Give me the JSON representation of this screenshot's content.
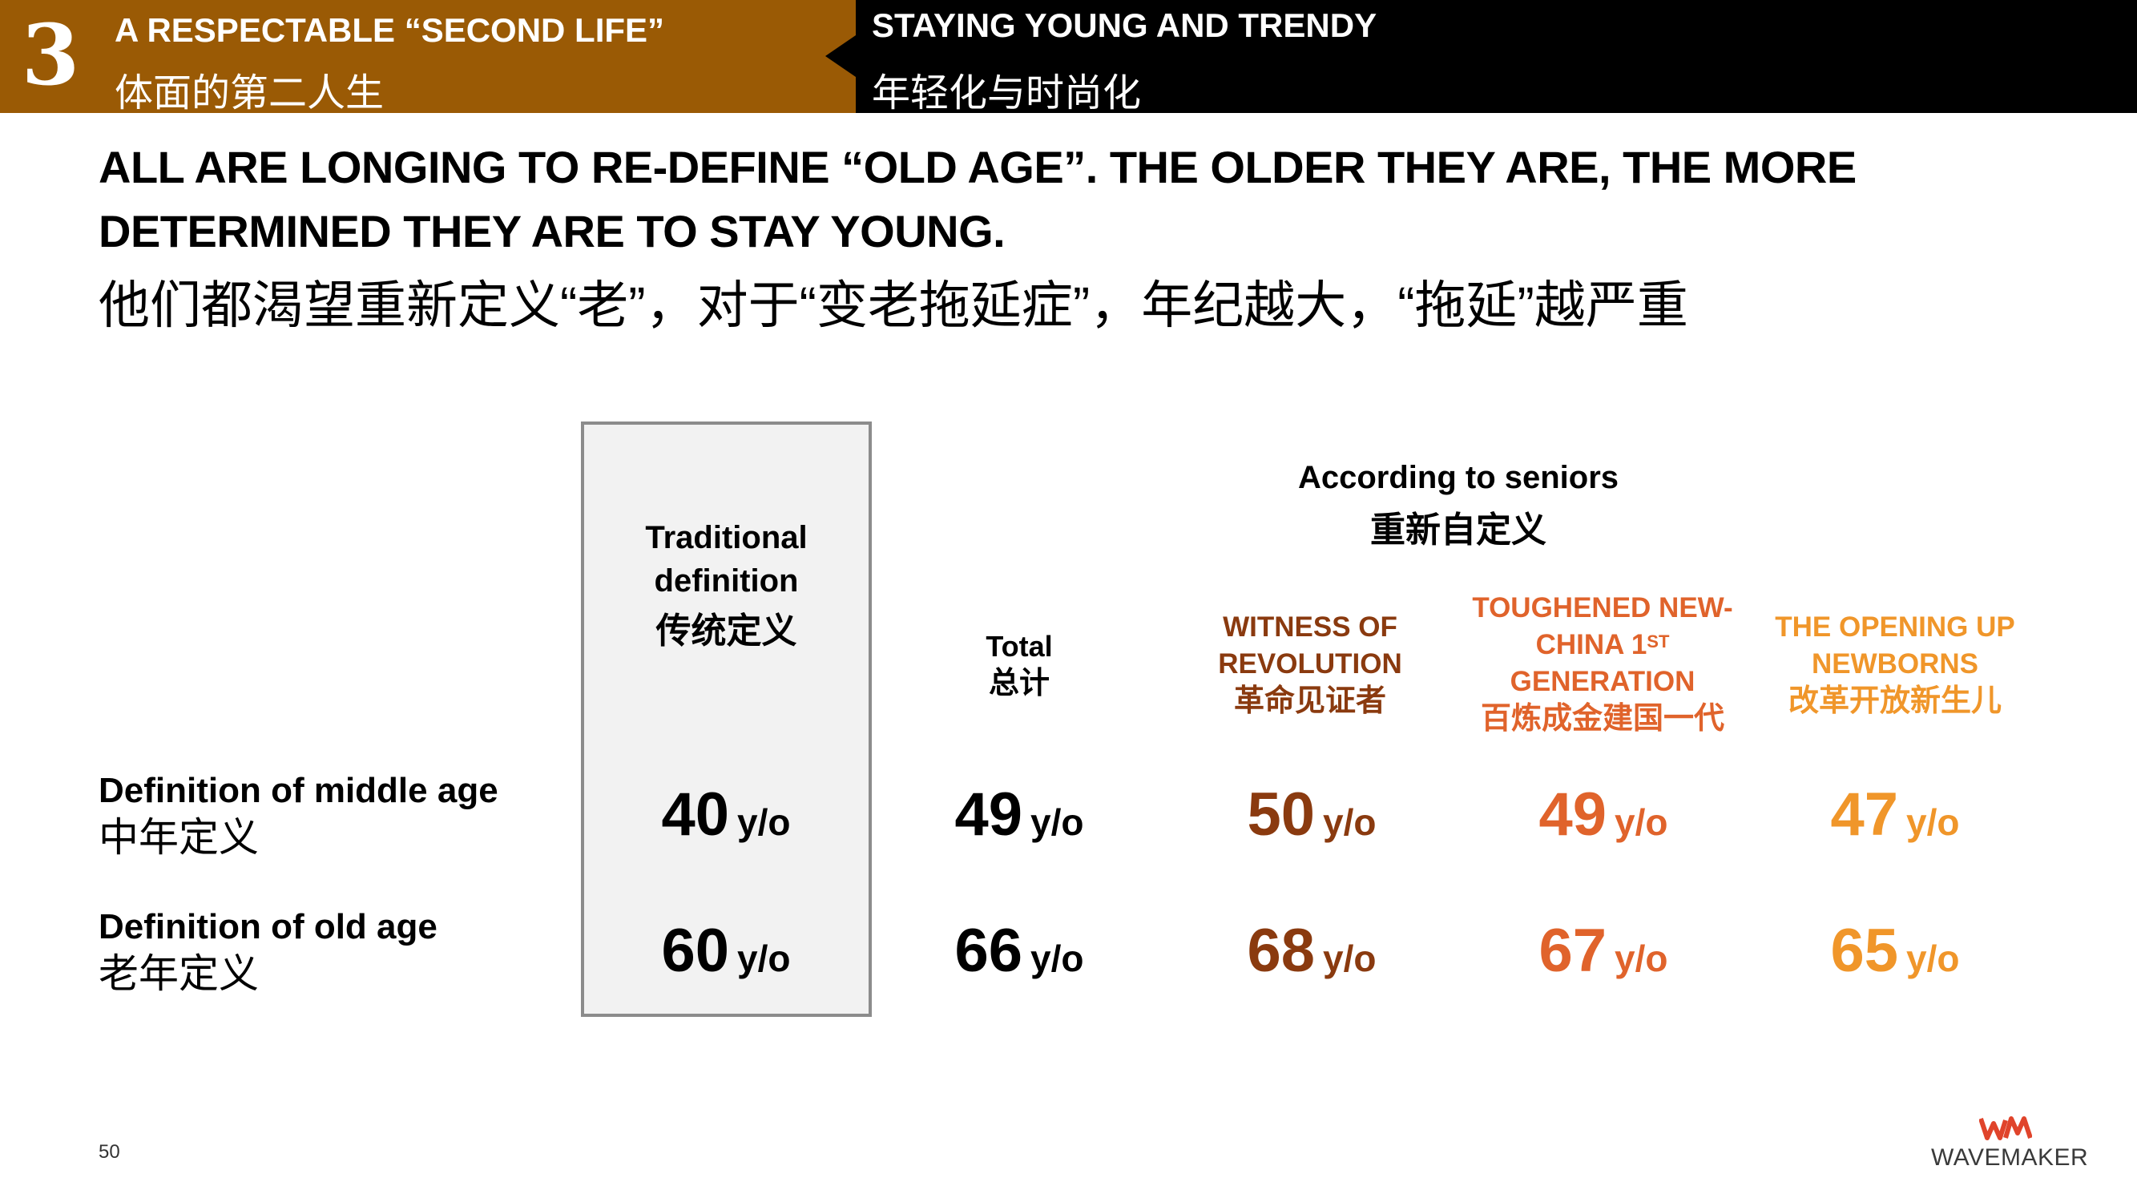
{
  "header": {
    "section_number": "3",
    "section_title_en": "A RESPECTABLE “SECOND LIFE”",
    "section_title_cn": "体面的第二人生",
    "subsection_title_en": "STAYING YOUNG AND TRENDY",
    "subsection_title_cn": "年轻化与时尚化"
  },
  "headline": {
    "line1": "ALL ARE LONGING TO RE-DEFINE “OLD AGE”. THE OLDER THEY ARE, THE MORE",
    "line2": "DETERMINED THEY ARE TO STAY YOUNG.",
    "line3_cn": "他们都渴望重新定义“老”，对于“变老拖延症”，年纪越大，“拖延”越严重"
  },
  "table": {
    "traditional": {
      "en_line1": "Traditional",
      "en_line2": "definition",
      "cn": "传统定义"
    },
    "according": {
      "en": "According to seniors",
      "cn": "重新自定义"
    },
    "total": {
      "en": "Total",
      "cn": "总计"
    },
    "witness": {
      "en_line1": "WITNESS OF",
      "en_line2": "REVOLUTION",
      "cn": "革命见证者"
    },
    "toughened": {
      "en_line1": "TOUGHENED NEW-",
      "en_line2a": "CHINA 1",
      "en_line2_sup": "ST",
      "en_line3": "GENERATION",
      "cn": "百炼成金建国一代"
    },
    "opening": {
      "en_line1": "THE OPENING UP",
      "en_line2": "NEWBORNS",
      "cn": "改革开放新生儿"
    },
    "rows": [
      {
        "label_en": "Definition of middle age",
        "label_cn": "中年定义",
        "traditional": "40",
        "total": "49",
        "witness": "50",
        "toughened": "49",
        "opening": "47"
      },
      {
        "label_en": "Definition of old age",
        "label_cn": "老年定义",
        "traditional": "60",
        "total": "66",
        "witness": "68",
        "toughened": "67",
        "opening": "65"
      }
    ],
    "unit": "y/o"
  },
  "colors": {
    "header_brown": "#9a5a05",
    "witness": "#8a3a0f",
    "toughened": "#e0632b",
    "opening": "#f0962a"
  },
  "footer": {
    "page_number": "50",
    "logo_text": "WAVEMAKER",
    "logo_icon": "wavemaker-logo-icon"
  }
}
